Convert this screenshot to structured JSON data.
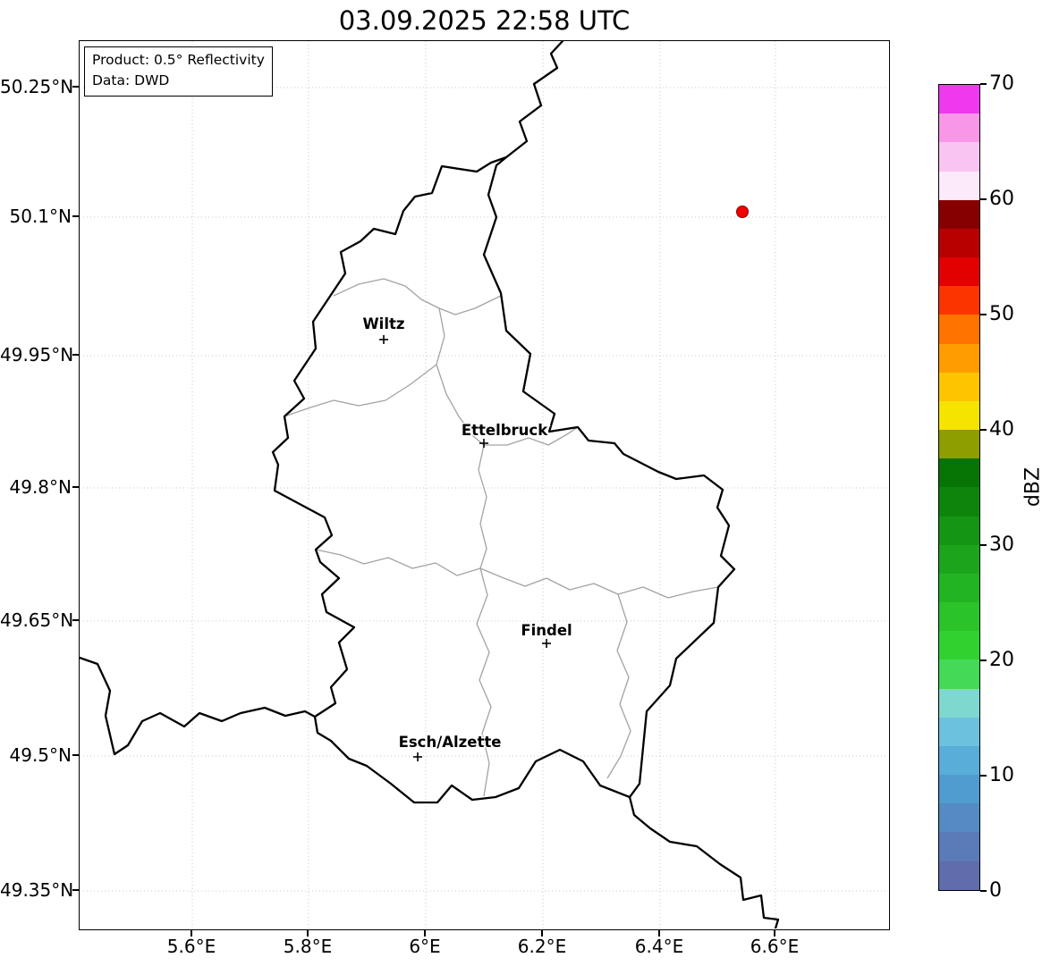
{
  "title": "03.09.2025 22:58 UTC",
  "info_box": {
    "line1": "Product: 0.5° Reflectivity",
    "line2": "Data: DWD"
  },
  "axes": {
    "y_ticks": [
      "50.25°N",
      "50.1°N",
      "49.95°N",
      "49.8°N",
      "49.65°N",
      "49.5°N",
      "49.35°N"
    ],
    "x_ticks": [
      "5.6°E",
      "5.8°E",
      "6°E",
      "6.2°E",
      "6.4°E",
      "6.6°E"
    ]
  },
  "cities": [
    {
      "name": "Wiltz"
    },
    {
      "name": "Ettelbruck"
    },
    {
      "name": "Findel"
    },
    {
      "name": "Esch/Alzette"
    }
  ],
  "radar_echo": {
    "approx_lon": 6.54,
    "approx_lat": 50.11,
    "color": "#f00000",
    "edge_color": "#8b0000"
  },
  "colorbar": {
    "label": "dBZ",
    "ticks": [
      "70",
      "60",
      "50",
      "40",
      "30",
      "20",
      "10",
      "0"
    ],
    "colors": [
      "#606cab",
      "#5a7ab8",
      "#548bc4",
      "#509bcf",
      "#58add9",
      "#6cc2de",
      "#7fd8cf",
      "#44da57",
      "#30d230",
      "#2ac32a",
      "#23b423",
      "#1ca51c",
      "#149514",
      "#0d850d",
      "#067506",
      "#8d9e00",
      "#f5e300",
      "#ffc400",
      "#ff9d00",
      "#ff7300",
      "#fb3500",
      "#e30000",
      "#b80000",
      "#870000",
      "#fce9f9",
      "#fac4f1",
      "#f897e8",
      "#ee39ee"
    ]
  },
  "map_colors": {
    "country_border": "#000000",
    "district_border": "#a3a3a3",
    "grid": "#c9c9c9"
  }
}
